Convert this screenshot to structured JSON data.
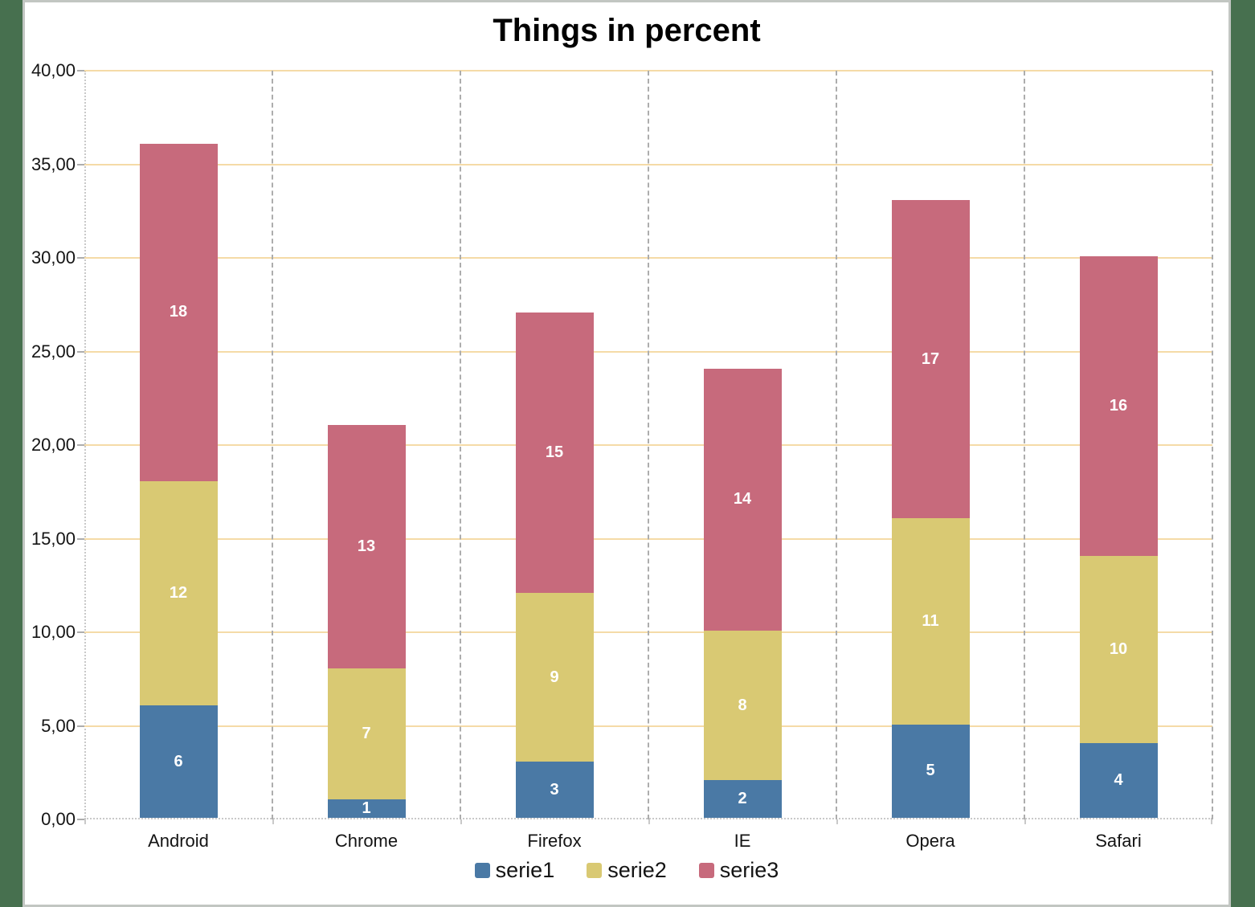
{
  "window": {
    "background_color": "#47704F",
    "panel_color": "#FFFFFF",
    "panel_border_color": "#C2C6C2"
  },
  "chart_data": {
    "type": "bar",
    "stacked": true,
    "title": "Things in percent",
    "categories": [
      "Android",
      "Chrome",
      "Firefox",
      "IE",
      "Opera",
      "Safari"
    ],
    "series": [
      {
        "name": "serie1",
        "color": "#4A79A5",
        "values": [
          6,
          1,
          3,
          2,
          5,
          4
        ]
      },
      {
        "name": "serie2",
        "color": "#D9C973",
        "values": [
          12,
          7,
          9,
          8,
          11,
          10
        ]
      },
      {
        "name": "serie3",
        "color": "#C76A7C",
        "values": [
          18,
          13,
          15,
          14,
          17,
          16
        ]
      }
    ],
    "data_labels_visible": true,
    "data_label_color": "#FFFFFF",
    "ylim": [
      0,
      40
    ],
    "y_tick_step": 5,
    "y_tick_labels": [
      "0,00",
      "5,00",
      "10,00",
      "15,00",
      "20,00",
      "25,00",
      "30,00",
      "35,00",
      "40,00"
    ],
    "xlabel": "",
    "ylabel": "",
    "grid": {
      "horizontal": true,
      "horizontal_color": "#F5DBA7",
      "vertical": true,
      "vertical_color": "#ADADAD",
      "axis_color": "#C9C9C9"
    },
    "legend_position": "bottom",
    "text_color": "#141414"
  }
}
